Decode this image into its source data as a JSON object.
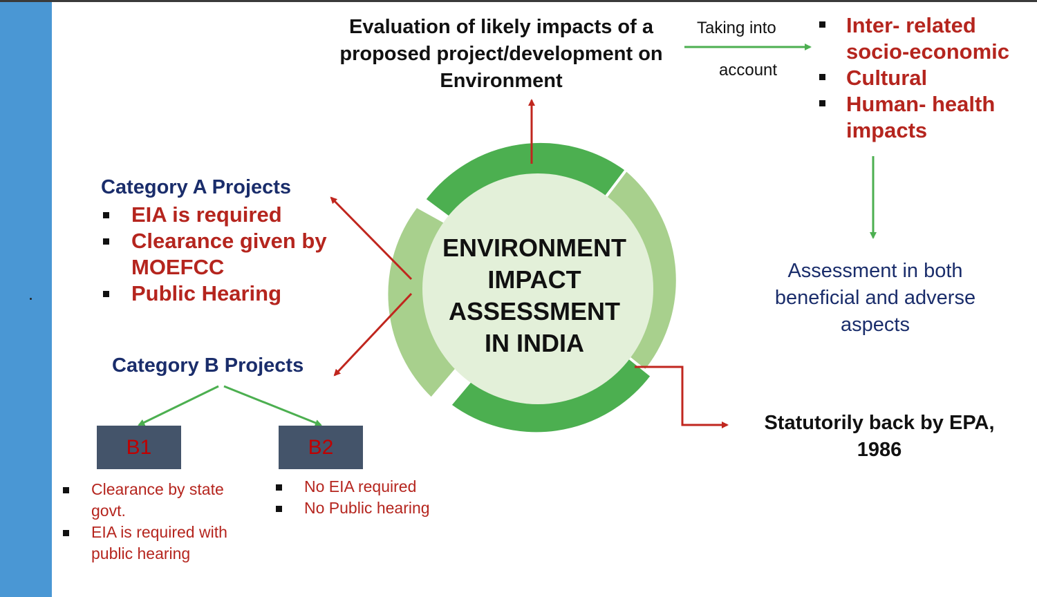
{
  "center_title": [
    "ENVIRONMENT",
    "IMPACT",
    "ASSESSMENT",
    "IN INDIA"
  ],
  "evaluation": [
    "Evaluation of likely impacts of a",
    "proposed project/development on",
    "Environment"
  ],
  "taking_into_account": [
    "Taking into",
    "account"
  ],
  "impacts": [
    "Inter- related socio-economic",
    "Cultural",
    "Human- health impacts"
  ],
  "assessment": [
    "Assessment in both",
    "beneficial and adverse",
    "aspects"
  ],
  "category_a": {
    "title": "Category A Projects",
    "items": [
      "EIA is required",
      "Clearance given by MOEFCC",
      "Public Hearing"
    ]
  },
  "category_b": {
    "title": "Category B Projects",
    "b1": {
      "label": "B1",
      "items": [
        "Clearance by state govt.",
        "EIA is required with public hearing"
      ]
    },
    "b2": {
      "label": "B2",
      "items": [
        "No EIA required",
        "No Public hearing"
      ]
    }
  },
  "statutory": [
    "Statutorily back by EPA,",
    "1986"
  ],
  "colors": {
    "sidebar": "#4a97d4",
    "ring_dark": "#4caf50",
    "ring_light": "#a8d08d",
    "inner_circle": "#e3f0d9",
    "red_text": "#b5251e",
    "navy_text": "#1a2d6b",
    "arrow_red": "#c0261e",
    "arrow_green": "#4caf50",
    "box_fill": "#44546a"
  }
}
